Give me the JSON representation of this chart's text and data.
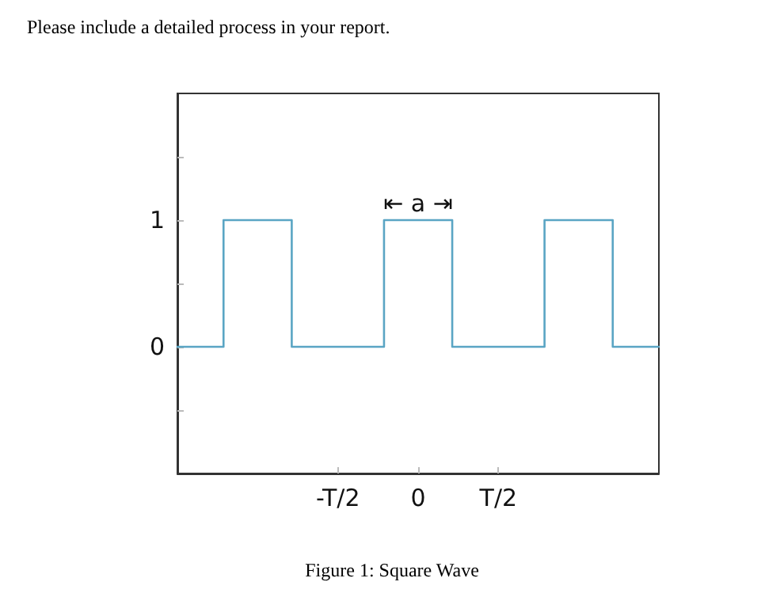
{
  "chart_data": {
    "type": "step",
    "title": "Figure 1: Square Wave",
    "annotations": [
      "Please include a detailed process in your report.",
      {
        "text": "⇤ a ⇥",
        "x": "0",
        "y": 1
      }
    ],
    "categories": [
      null,
      null,
      null,
      null,
      null,
      null,
      null,
      null,
      null,
      null,
      null,
      null,
      null,
      null,
      null,
      null,
      null,
      null,
      null,
      null,
      null,
      null,
      null,
      null,
      null,
      null,
      null,
      null,
      null,
      null,
      null,
      null,
      null,
      null,
      null,
      null,
      null,
      null,
      null,
      null,
      "-T/2",
      null,
      null,
      null,
      null,
      null,
      null,
      null,
      null,
      null,
      null,
      null,
      null,
      null,
      null,
      null,
      null,
      null,
      null,
      null,
      "0",
      null,
      null,
      null,
      null,
      null,
      null,
      null,
      null,
      null,
      null,
      null,
      null,
      null,
      null,
      null,
      null,
      null,
      null,
      null,
      "T/2",
      null,
      null,
      null,
      null,
      null,
      null,
      null,
      null,
      null,
      null,
      null,
      null,
      null,
      null,
      null,
      null,
      null,
      null,
      null,
      null,
      null,
      null,
      null,
      null,
      null,
      null,
      null,
      null,
      null,
      null,
      null,
      null,
      null,
      null,
      null,
      null,
      null,
      null,
      null,
      null
    ],
    "series": [
      {
        "color": "#5aa5c4",
        "values": [
          0,
          0,
          0,
          0,
          0,
          0,
          0,
          0,
          0,
          0,
          0,
          0,
          1,
          1,
          1,
          1,
          1,
          1,
          1,
          1,
          1,
          1,
          1,
          1,
          1,
          1,
          1,
          1,
          1,
          0,
          0,
          0,
          0,
          0,
          0,
          0,
          0,
          0,
          0,
          0,
          0,
          0,
          0,
          0,
          0,
          0,
          0,
          0,
          0,
          0,
          0,
          0,
          1,
          1,
          1,
          1,
          1,
          1,
          1,
          1,
          1,
          1,
          1,
          1,
          1,
          1,
          1,
          1,
          1,
          0,
          0,
          0,
          0,
          0,
          0,
          0,
          0,
          0,
          0,
          0,
          0,
          0,
          0,
          0,
          0,
          0,
          0,
          0,
          0,
          0,
          0,
          0,
          1,
          1,
          1,
          1,
          1,
          1,
          1,
          1,
          1,
          1,
          1,
          1,
          1,
          1,
          1,
          1,
          1,
          0,
          0,
          0,
          0,
          0,
          0,
          0,
          0,
          0,
          0,
          0,
          0
        ]
      }
    ],
    "ylim": [
      -1,
      2
    ],
    "yticks": [
      {
        "value": -0.5,
        "label": null
      },
      0,
      {
        "value": 0.5,
        "label": null
      },
      1,
      {
        "value": 1.5,
        "label": null
      }
    ],
    "grid": false,
    "marker": "none",
    "line_style": "solid"
  }
}
